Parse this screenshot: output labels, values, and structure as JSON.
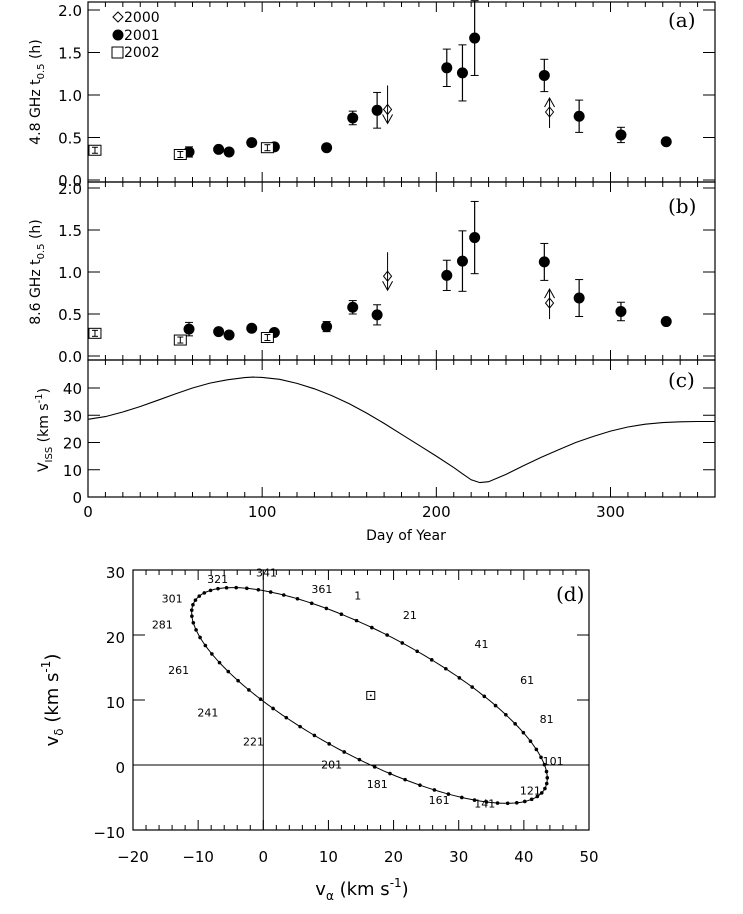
{
  "chart_data": [
    {
      "id": "a",
      "type": "scatter",
      "panel_tag": "(a)",
      "ylabel_main": "4.8 GHz  t",
      "ylabel_sub": "0.5",
      "ylabel_tail": " (h)",
      "xlim": [
        0,
        360
      ],
      "ylim": [
        0,
        2.1
      ],
      "yticks": [
        "0.0",
        "0.5",
        "1.0",
        "1.5",
        "2.0"
      ],
      "ytick_values": [
        0,
        0.5,
        1.0,
        1.5,
        2.0
      ],
      "legend": {
        "placement": "top-left",
        "entries": [
          {
            "marker": "diamond",
            "label": "2000"
          },
          {
            "marker": "circle",
            "label": "2001"
          },
          {
            "marker": "square",
            "label": "2002"
          }
        ]
      },
      "series": [
        {
          "name": "2000",
          "marker": "diamond",
          "points": [
            {
              "x": 172,
              "y": 0.83,
              "limit": "upper"
            },
            {
              "x": 265,
              "y": 0.8,
              "limit": "lower"
            }
          ]
        },
        {
          "name": "2001",
          "marker": "circle",
          "points": [
            {
              "x": 58,
              "y": 0.33,
              "err": 0.06
            },
            {
              "x": 75,
              "y": 0.36,
              "err": 0.02
            },
            {
              "x": 81,
              "y": 0.33,
              "err": 0.02
            },
            {
              "x": 94,
              "y": 0.44,
              "err": 0.02
            },
            {
              "x": 107,
              "y": 0.39,
              "err": 0.04
            },
            {
              "x": 137,
              "y": 0.38,
              "err": 0.03
            },
            {
              "x": 152,
              "y": 0.73,
              "err": 0.08
            },
            {
              "x": 166,
              "y": 0.82,
              "err": 0.21
            },
            {
              "x": 206,
              "y": 1.32,
              "err": 0.22
            },
            {
              "x": 215,
              "y": 1.26,
              "err": 0.33
            },
            {
              "x": 222,
              "y": 1.67,
              "err": 0.44
            },
            {
              "x": 262,
              "y": 1.23,
              "err": 0.19
            },
            {
              "x": 282,
              "y": 0.75,
              "err": 0.19
            },
            {
              "x": 306,
              "y": 0.53,
              "err": 0.09
            },
            {
              "x": 332,
              "y": 0.45,
              "err": 0.0
            }
          ]
        },
        {
          "name": "2002",
          "marker": "square",
          "points": [
            {
              "x": 4,
              "y": 0.35,
              "err": 0.03
            },
            {
              "x": 53,
              "y": 0.3,
              "err": 0.03
            },
            {
              "x": 103,
              "y": 0.38,
              "err": 0.03
            }
          ]
        }
      ]
    },
    {
      "id": "b",
      "type": "scatter",
      "panel_tag": "(b)",
      "ylabel_main": "8.6 GHz  t",
      "ylabel_sub": "0.5",
      "ylabel_tail": " (h)",
      "xlim": [
        0,
        360
      ],
      "ylim": [
        0,
        2.1
      ],
      "yticks": [
        "0.0",
        "0.5",
        "1.0",
        "1.5",
        "2.0"
      ],
      "ytick_values": [
        0,
        0.5,
        1.0,
        1.5,
        2.0
      ],
      "series": [
        {
          "name": "2000",
          "marker": "diamond",
          "points": [
            {
              "x": 172,
              "y": 0.95,
              "limit": "upper"
            },
            {
              "x": 265,
              "y": 0.63,
              "limit": "lower"
            }
          ]
        },
        {
          "name": "2001",
          "marker": "circle",
          "points": [
            {
              "x": 58,
              "y": 0.32,
              "err": 0.08
            },
            {
              "x": 75,
              "y": 0.29,
              "err": 0.02
            },
            {
              "x": 81,
              "y": 0.25,
              "err": 0.02
            },
            {
              "x": 94,
              "y": 0.33,
              "err": 0.02
            },
            {
              "x": 107,
              "y": 0.28,
              "err": 0.03
            },
            {
              "x": 137,
              "y": 0.35,
              "err": 0.06
            },
            {
              "x": 152,
              "y": 0.58,
              "err": 0.08
            },
            {
              "x": 166,
              "y": 0.49,
              "err": 0.12
            },
            {
              "x": 206,
              "y": 0.96,
              "err": 0.18
            },
            {
              "x": 215,
              "y": 1.13,
              "err": 0.36
            },
            {
              "x": 222,
              "y": 1.41,
              "err": 0.43
            },
            {
              "x": 262,
              "y": 1.12,
              "err": 0.22
            },
            {
              "x": 282,
              "y": 0.69,
              "err": 0.22
            },
            {
              "x": 306,
              "y": 0.53,
              "err": 0.11
            },
            {
              "x": 332,
              "y": 0.41,
              "err": 0.0
            }
          ]
        },
        {
          "name": "2002",
          "marker": "square",
          "points": [
            {
              "x": 4,
              "y": 0.27,
              "err": 0.03
            },
            {
              "x": 53,
              "y": 0.19,
              "err": 0.03
            },
            {
              "x": 103,
              "y": 0.22,
              "err": 0.03
            }
          ]
        }
      ]
    },
    {
      "id": "c",
      "type": "line",
      "panel_tag": "(c)",
      "ylabel_main": "V",
      "ylabel_sub": "ISS",
      "ylabel_tail": " (km s",
      "ylabel_sup": "-1",
      "ylabel_end": ")",
      "xlabel": "Day of Year",
      "xlim": [
        0,
        360
      ],
      "ylim": [
        0,
        48
      ],
      "xticks": [
        "0",
        "100",
        "200",
        "300"
      ],
      "xtick_values": [
        0,
        100,
        200,
        300
      ],
      "yticks": [
        "0",
        "10",
        "20",
        "30",
        "40"
      ],
      "ytick_values": [
        0,
        10,
        20,
        30,
        40
      ],
      "series": [
        {
          "name": "V_ISS",
          "x": [
            0,
            10,
            20,
            30,
            40,
            50,
            60,
            70,
            80,
            90,
            95,
            100,
            110,
            120,
            130,
            140,
            150,
            160,
            170,
            180,
            190,
            200,
            210,
            215,
            220,
            225,
            230,
            240,
            250,
            260,
            270,
            280,
            290,
            300,
            310,
            320,
            330,
            340,
            350,
            360
          ],
          "y": [
            28.5,
            29.5,
            31.2,
            33.2,
            35.5,
            37.8,
            40.0,
            41.8,
            43.0,
            43.8,
            44.0,
            43.9,
            43.2,
            41.7,
            39.7,
            37.2,
            34.2,
            30.8,
            27.0,
            23.0,
            19.0,
            15.0,
            10.8,
            8.5,
            6.3,
            5.3,
            5.6,
            8.3,
            11.5,
            14.5,
            17.3,
            20.0,
            22.2,
            24.2,
            25.7,
            26.7,
            27.3,
            27.6,
            27.7,
            27.7
          ]
        }
      ]
    },
    {
      "id": "d",
      "type": "line",
      "panel_tag": "(d)",
      "xlabel_main": "v",
      "xlabel_sub": "α",
      "xlabel_tail": " (km s",
      "xlabel_sup": "-1",
      "xlabel_end": ")",
      "ylabel_main": "v",
      "ylabel_sub": "δ",
      "ylabel_tail": " (km s",
      "ylabel_sup": "-1",
      "ylabel_end": ")",
      "xlim": [
        -20,
        50
      ],
      "ylim": [
        -10,
        30
      ],
      "xticks": [
        "−20",
        "−10",
        "0",
        "10",
        "20",
        "30",
        "40",
        "50"
      ],
      "xtick_values": [
        -20,
        -10,
        0,
        10,
        20,
        30,
        40,
        50
      ],
      "yticks": [
        "−10",
        "0",
        "10",
        "20",
        "30"
      ],
      "ytick_values": [
        -10,
        0,
        10,
        20,
        30
      ],
      "zero_lines": true,
      "center_marker": {
        "x": 16.5,
        "y": 10.7
      },
      "ellipse": {
        "center": [
          16.5,
          10.7
        ],
        "description": "annual velocity ellipse, points every 5 days"
      },
      "day_labels": [
        {
          "day": "1",
          "x": 14.5,
          "y": 25.5
        },
        {
          "day": "21",
          "x": 22.5,
          "y": 22.5
        },
        {
          "day": "41",
          "x": 33.5,
          "y": 18.0
        },
        {
          "day": "61",
          "x": 40.5,
          "y": 12.5
        },
        {
          "day": "81",
          "x": 43.5,
          "y": 6.5
        },
        {
          "day": "101",
          "x": 44.5,
          "y": 0.0
        },
        {
          "day": "121",
          "x": 41.0,
          "y": -4.5
        },
        {
          "day": "141",
          "x": 34.0,
          "y": -6.5
        },
        {
          "day": "161",
          "x": 27.0,
          "y": -6.0
        },
        {
          "day": "181",
          "x": 17.5,
          "y": -3.5
        },
        {
          "day": "201",
          "x": 10.5,
          "y": -0.5
        },
        {
          "day": "221",
          "x": -1.5,
          "y": 3.0
        },
        {
          "day": "241",
          "x": -8.5,
          "y": 7.5
        },
        {
          "day": "261",
          "x": -13.0,
          "y": 14.0
        },
        {
          "day": "281",
          "x": -15.5,
          "y": 21.0
        },
        {
          "day": "301",
          "x": -14.0,
          "y": 25.0
        },
        {
          "day": "321",
          "x": -7.0,
          "y": 28.0
        },
        {
          "day": "341",
          "x": 0.5,
          "y": 29.0
        },
        {
          "day": "361",
          "x": 9.0,
          "y": 26.5
        }
      ]
    }
  ]
}
